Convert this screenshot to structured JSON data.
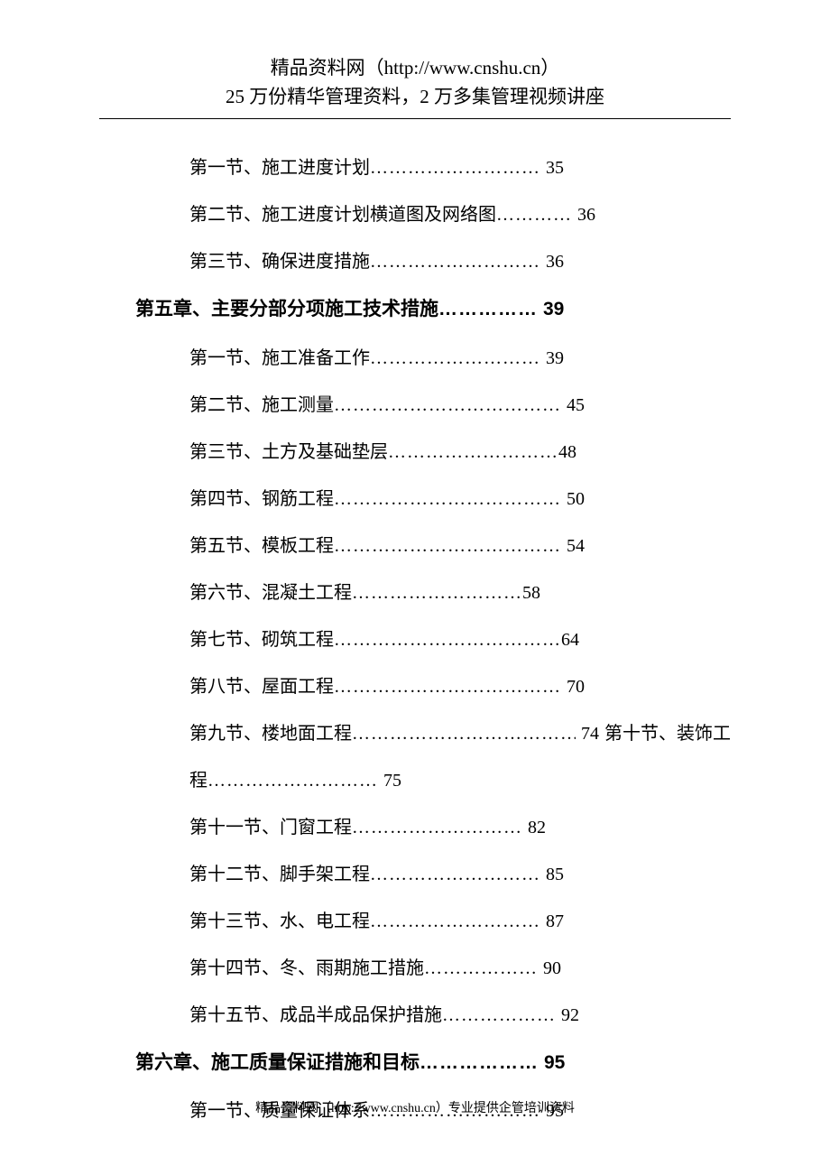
{
  "header": {
    "line1": "精品资料网（http://www.cnshu.cn）",
    "line2": "25 万份精华管理资料，2 万多集管理视频讲座"
  },
  "toc": {
    "items": [
      {
        "type": "section",
        "text": "第一节、施工进度计划",
        "dots": "………………………",
        "page": "35"
      },
      {
        "type": "section",
        "text": "第二节、施工进度计划横道图及网络图",
        "dots": " …………",
        "page": "36"
      },
      {
        "type": "section",
        "text": "第三节、确保进度措施",
        "dots": "………………………",
        "page": "36"
      },
      {
        "type": "chapter",
        "text": "第五章、主要分部分项施工技术措施",
        "dots": "……………",
        "page": " 39"
      },
      {
        "type": "section",
        "text": "第一节、施工准备工作",
        "dots": "………………………",
        "page": "39"
      },
      {
        "type": "section",
        "text": "第二节、施工测量",
        "dots": "………………………………",
        "page": "45"
      },
      {
        "type": "section",
        "text": "第三节、土方及基础垫层",
        "dots": "………………………",
        "page": "48",
        "nospace": true
      },
      {
        "type": "section",
        "text": "第四节、钢筋工程",
        "dots": "………………………………",
        "page": "50"
      },
      {
        "type": "section",
        "text": "第五节、模板工程",
        "dots": "………………………………",
        "page": "54"
      },
      {
        "type": "section",
        "text": "第六节、混凝土工程",
        "dots": "………………………",
        "page": "58",
        "nospace": true
      },
      {
        "type": "section",
        "text": "第七节、砌筑工程",
        "dots": "………………………………",
        "page": "64",
        "nospace": true
      },
      {
        "type": "section",
        "text": "第八节、屋面工程",
        "dots": "………………………………",
        "page": "70"
      },
      {
        "type": "section",
        "text": "第九节、楼地面工程",
        "dots": "………………………………",
        "page": "74",
        "extra": " 第十节、装饰工"
      },
      {
        "type": "continuation",
        "text": "程",
        "dots": "………………………",
        "page": "75"
      },
      {
        "type": "section",
        "text": "第十一节、门窗工程",
        "dots": "………………………",
        "page": "  82"
      },
      {
        "type": "section",
        "text": "第十二节、脚手架工程",
        "dots": "………………………",
        "page": "85"
      },
      {
        "type": "section",
        "text": "第十三节、水、电工程",
        "dots": "………………………",
        "page": "  87"
      },
      {
        "type": "section",
        "text": "第十四节、冬、雨期施工措施",
        "dots": "………………",
        "page": " 90"
      },
      {
        "type": "section",
        "text": "第十五节、成品半成品保护措施",
        "dots": "………………",
        "page": " 92"
      },
      {
        "type": "chapter",
        "text": "第六章、施工质量保证措施和目标",
        "dots": "………………",
        "page": "  95"
      },
      {
        "type": "section",
        "text": "第一节、质量保证体系",
        "dots": "………………………",
        "page": "  95"
      }
    ]
  },
  "footer": {
    "text": "精品资料网（http://www.cnshu.cn）专业提供企管培训资料"
  }
}
